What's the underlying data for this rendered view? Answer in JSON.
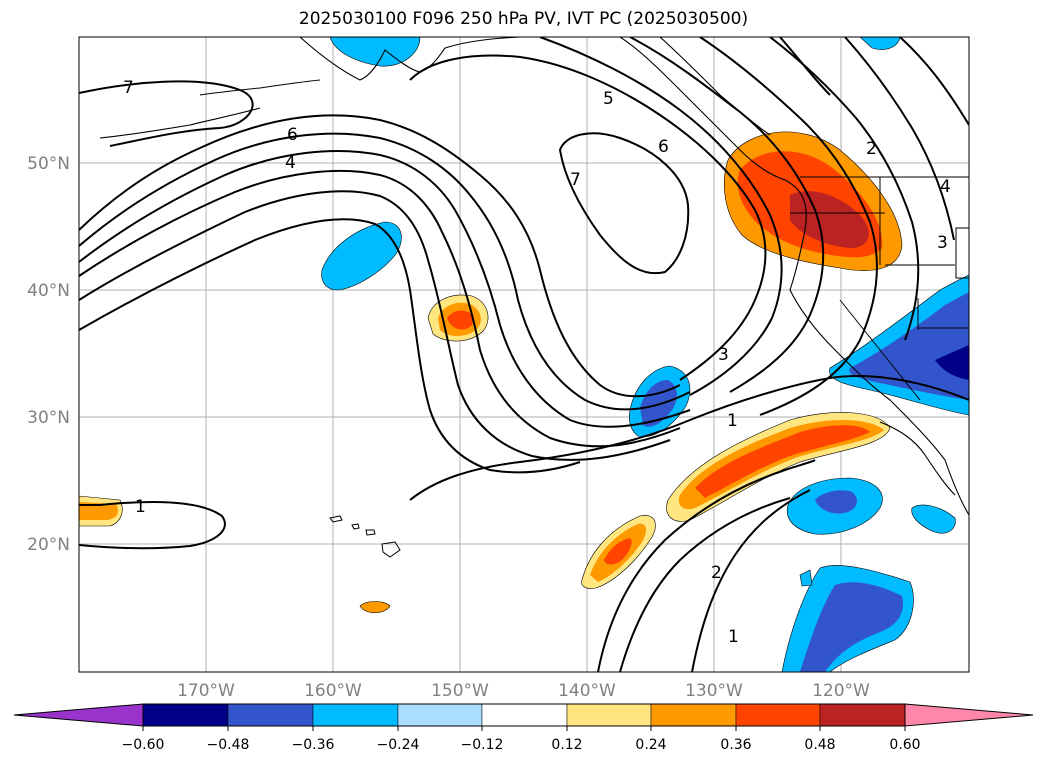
{
  "title": "2025030100 F096 250 hPa PV, IVT PC (2025030500)",
  "map": {
    "lat_labels": [
      "50°N",
      "40°N",
      "30°N",
      "20°N"
    ],
    "lon_labels": [
      "170°W",
      "160°W",
      "150°W",
      "140°W",
      "130°W",
      "120°W"
    ],
    "contour_labels": [
      "7",
      "6",
      "4",
      "5",
      "6",
      "7",
      "2",
      "4",
      "3",
      "3",
      "1",
      "1",
      "2",
      "1"
    ]
  },
  "colorbar": {
    "ticks": [
      "−0.60",
      "−0.48",
      "−0.36",
      "−0.24",
      "−0.12",
      "0.12",
      "0.24",
      "0.36",
      "0.48",
      "0.60"
    ],
    "colors": [
      "#9933cc",
      "#000088",
      "#3355cc",
      "#00bbff",
      "#aaddff",
      "#ffffff",
      "#ffe680",
      "#ff9900",
      "#ff4400",
      "#bb2222",
      "#ff88aa"
    ]
  }
}
